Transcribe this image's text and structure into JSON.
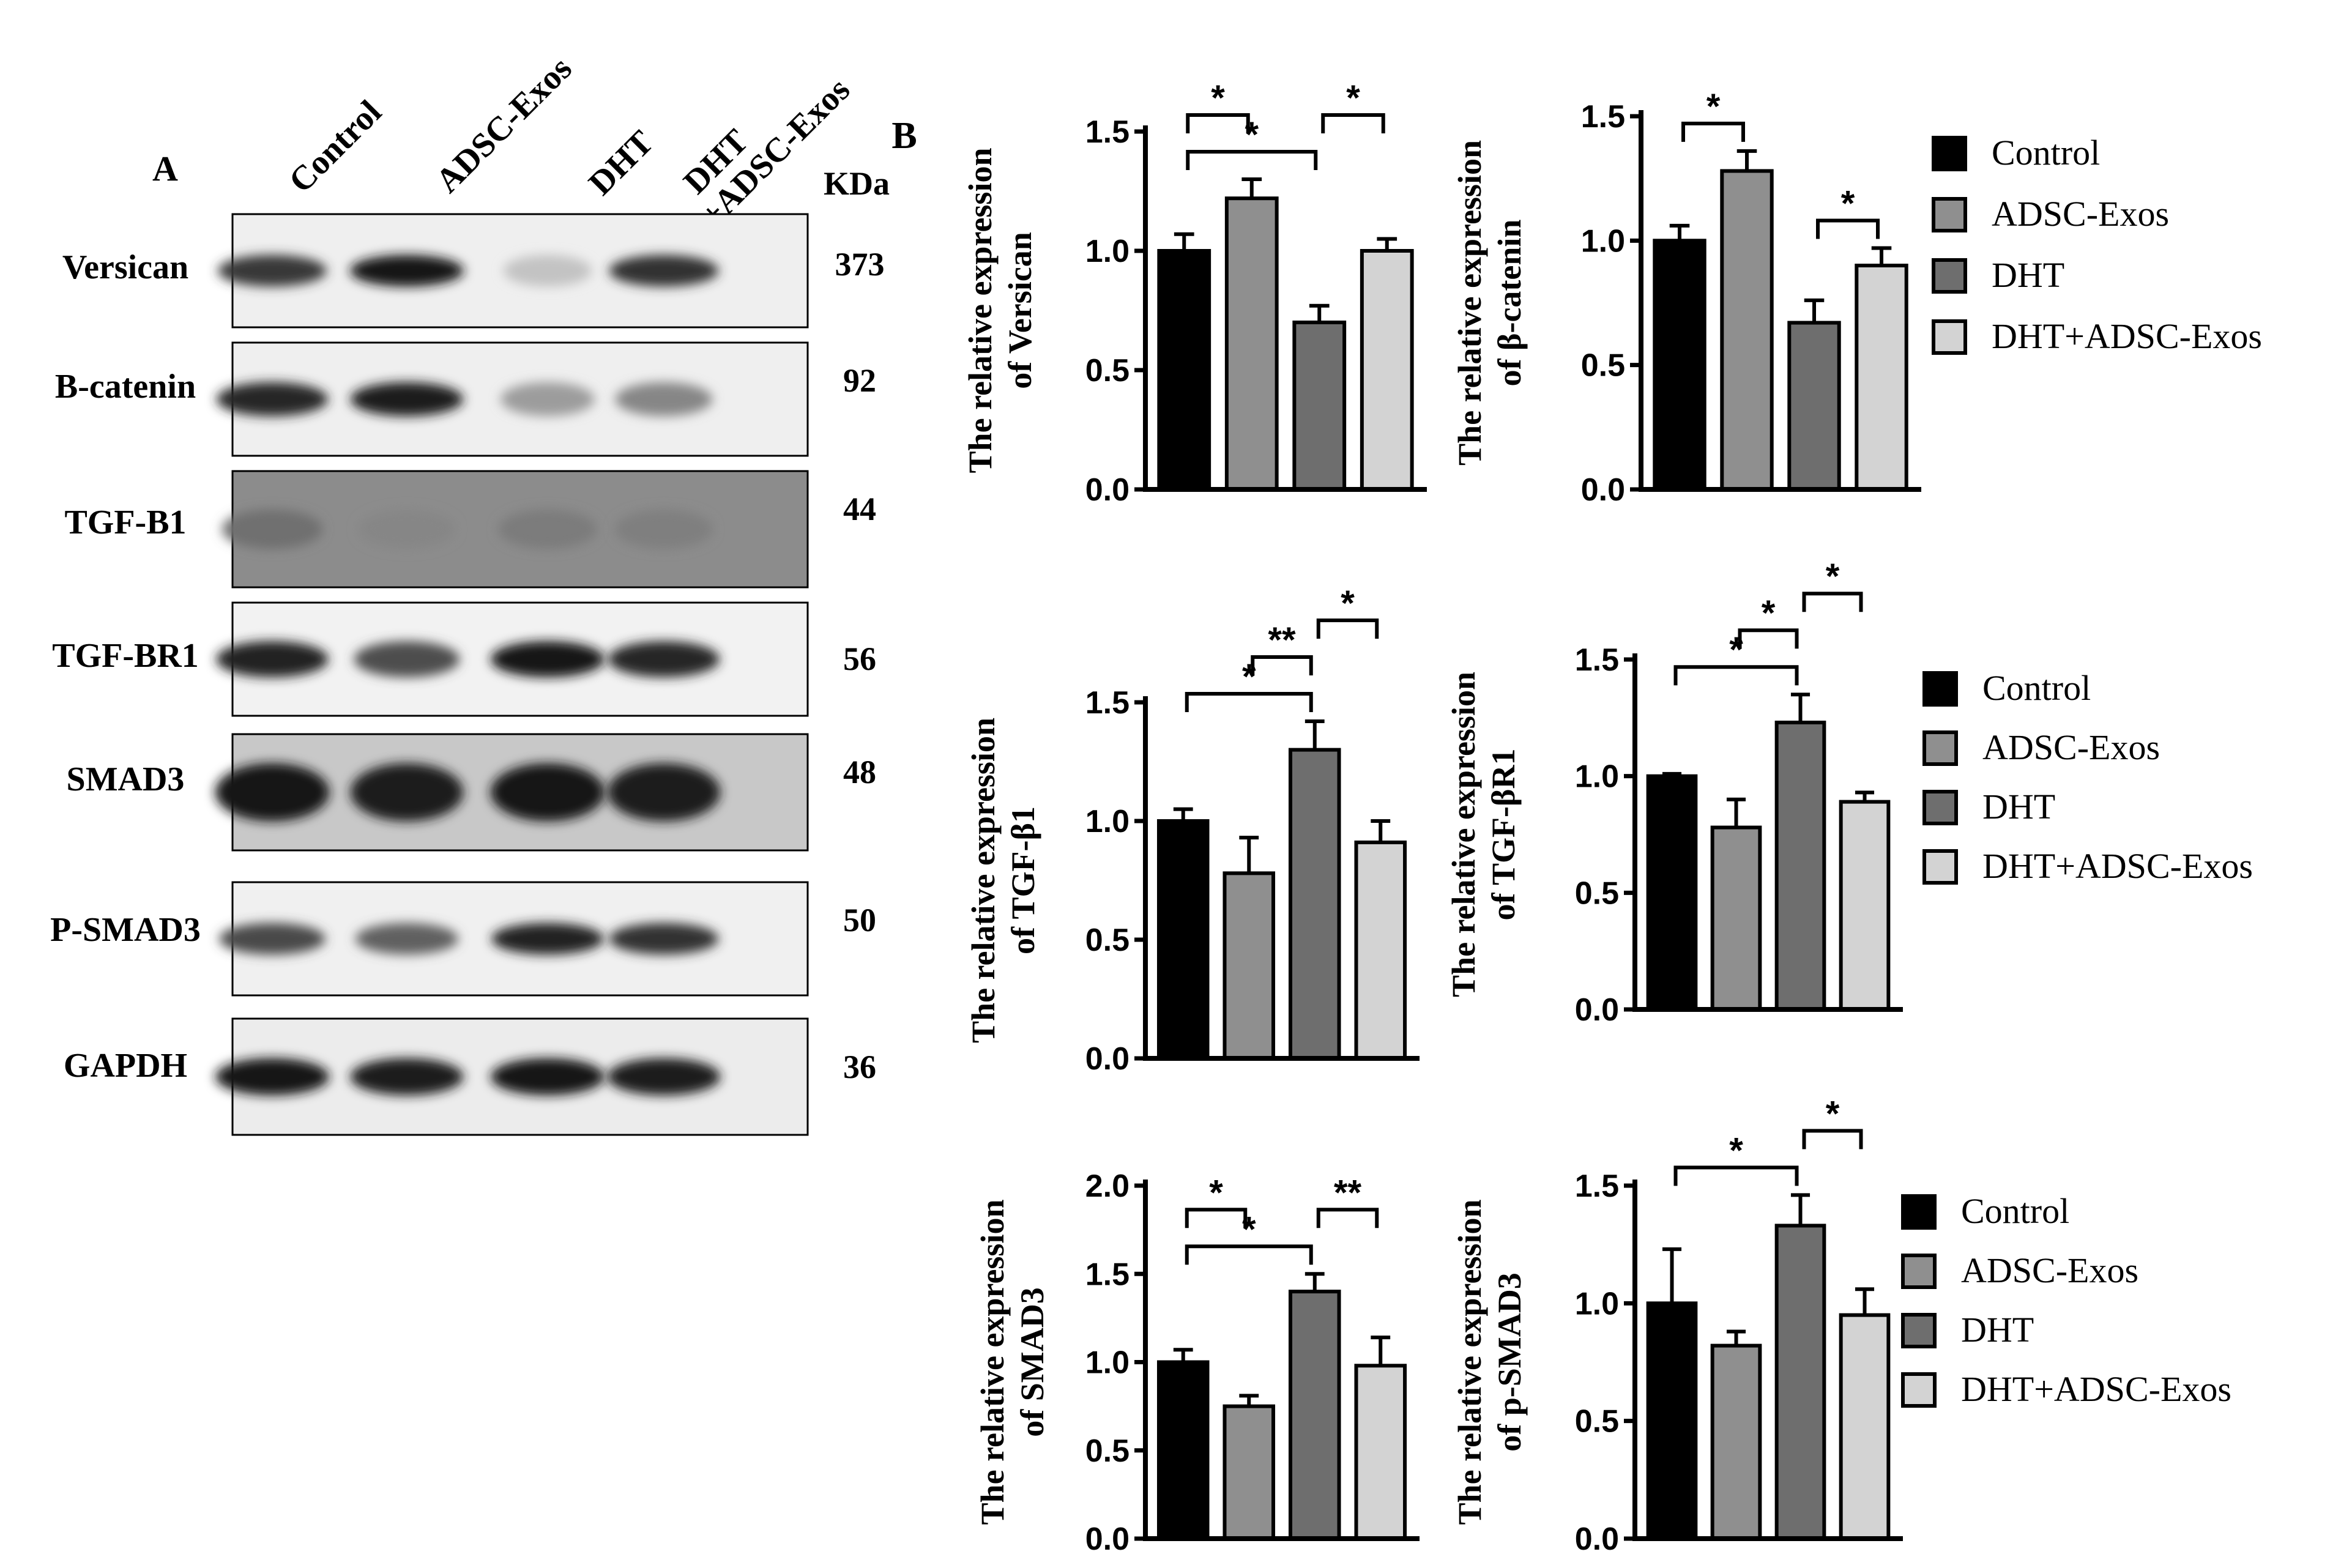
{
  "panel_a": {
    "label": "A",
    "unit_label": "KDa",
    "lane_labels": [
      {
        "text": "Control"
      },
      {
        "text": "ADSC-Exos"
      },
      {
        "text": "DHT"
      },
      {
        "text": "DHT",
        "text2": "+ADSC-Exos"
      }
    ],
    "blots": [
      {
        "name": "Versican",
        "kda": "373",
        "bg": "#efefef",
        "intensity": [
          0.8,
          0.95,
          0.18,
          0.82
        ],
        "band_h": 0.28
      },
      {
        "name": "B-catenin",
        "kda": "92",
        "bg": "#efefef",
        "intensity": [
          0.88,
          0.92,
          0.35,
          0.45
        ],
        "band_h": 0.3
      },
      {
        "name": "TGF-B1",
        "kda": "44",
        "bg": "#8c8c8c",
        "intensity": [
          0.55,
          0.45,
          0.5,
          0.48
        ],
        "band_h": 0.34
      },
      {
        "name": "TGF-BR1",
        "kda": "56",
        "bg": "#f2f2f2",
        "intensity": [
          0.9,
          0.7,
          0.95,
          0.88
        ],
        "band_h": 0.32
      },
      {
        "name": "SMAD3",
        "kda": "48",
        "bg": "#c8c8c8",
        "intensity": [
          0.96,
          0.92,
          0.96,
          0.92
        ],
        "band_h": 0.5
      },
      {
        "name": "P-SMAD3",
        "kda": "50",
        "bg": "#f0f0f0",
        "intensity": [
          0.72,
          0.62,
          0.9,
          0.82
        ],
        "band_h": 0.28
      },
      {
        "name": "GAPDH",
        "kda": "36",
        "bg": "#ececec",
        "intensity": [
          0.95,
          0.93,
          0.95,
          0.93
        ],
        "band_h": 0.32
      }
    ]
  },
  "panel_b": {
    "label": "B"
  },
  "colors": {
    "Control": "#000000",
    "ADSC-Exos": "#8f8f8f",
    "DHT": "#6e6e6e",
    "DHT+ADSC-Exos": "#d3d3d3"
  },
  "legend_items": [
    "Control",
    "ADSC-Exos",
    "DHT",
    "DHT+ADSC-Exos"
  ],
  "chart_data": [
    {
      "type": "bar",
      "categories": [
        "Control",
        "ADSC-Exos",
        "DHT",
        "DHT+ADSC-Exos"
      ],
      "values": [
        1.0,
        1.22,
        0.7,
        1.0
      ],
      "errors": [
        0.07,
        0.08,
        0.07,
        0.05
      ],
      "ylabel": "The relative expression",
      "ylabel2": "of  Versican",
      "ylim": [
        0,
        1.5
      ],
      "yticks": [
        "0.0",
        "0.5",
        "1.0",
        "1.5"
      ],
      "legend": "right",
      "significance": [
        {
          "from": 0,
          "to": 2,
          "label": "*"
        },
        {
          "from": 0,
          "to": 1,
          "label": "*"
        },
        {
          "from": 2,
          "to": 3,
          "label": "*"
        }
      ]
    },
    {
      "type": "bar",
      "categories": [
        "Control",
        "ADSC-Exos",
        "DHT",
        "DHT+ADSC-Exos"
      ],
      "values": [
        1.0,
        1.28,
        0.67,
        0.9
      ],
      "errors": [
        0.06,
        0.08,
        0.09,
        0.07
      ],
      "ylabel": "The relative expression",
      "ylabel2": "of β-catenin",
      "ylim": [
        0,
        1.5
      ],
      "yticks": [
        "0.0",
        "0.5",
        "1.0",
        "1.5"
      ],
      "legend": "right",
      "significance": [
        {
          "from": 0,
          "to": 1,
          "label": "*"
        },
        {
          "from": 2,
          "to": 3,
          "label": "*"
        }
      ]
    },
    {
      "type": "bar",
      "categories": [
        "Control",
        "ADSC-Exos",
        "DHT",
        "DHT+ADSC-Exos"
      ],
      "values": [
        1.0,
        0.78,
        1.3,
        0.91
      ],
      "errors": [
        0.05,
        0.15,
        0.12,
        0.09
      ],
      "ylabel": "The relative  expression",
      "ylabel2": "of TGF-β1",
      "ylim": [
        0,
        1.5
      ],
      "yticks": [
        "0.0",
        "0.5",
        "1.0",
        "1.5"
      ],
      "legend": "right",
      "significance": [
        {
          "from": 0,
          "to": 2,
          "label": "*"
        },
        {
          "from": 1,
          "to": 2,
          "label": "**"
        },
        {
          "from": 2,
          "to": 3,
          "label": "*"
        }
      ]
    },
    {
      "type": "bar",
      "categories": [
        "Control",
        "ADSC-Exos",
        "DHT",
        "DHT+ADSC-Exos"
      ],
      "values": [
        1.0,
        0.78,
        1.23,
        0.89
      ],
      "errors": [
        0.01,
        0.12,
        0.12,
        0.04
      ],
      "ylabel": "The relative expression",
      "ylabel2": "of TGF-βR1",
      "ylim": [
        0,
        1.5
      ],
      "yticks": [
        "0.0",
        "0.5",
        "1.0",
        "1.5"
      ],
      "legend": "right",
      "significance": [
        {
          "from": 0,
          "to": 2,
          "label": "*"
        },
        {
          "from": 1,
          "to": 2,
          "label": "*"
        },
        {
          "from": 2,
          "to": 3,
          "label": "*"
        }
      ]
    },
    {
      "type": "bar",
      "categories": [
        "Control",
        "ADSC-Exos",
        "DHT",
        "DHT+ADSC-Exos"
      ],
      "values": [
        1.0,
        0.75,
        1.4,
        0.98
      ],
      "errors": [
        0.07,
        0.06,
        0.1,
        0.16
      ],
      "ylabel": "The relative expression",
      "ylabel2": "of  SMAD3",
      "ylim": [
        0,
        2.0
      ],
      "yticks": [
        "0.0",
        "0.5",
        "1.0",
        "1.5",
        "2.0"
      ],
      "legend": "right",
      "significance": [
        {
          "from": 0,
          "to": 2,
          "label": "*"
        },
        {
          "from": 0,
          "to": 1,
          "label": "*"
        },
        {
          "from": 2,
          "to": 3,
          "label": "**"
        }
      ]
    },
    {
      "type": "bar",
      "categories": [
        "Control",
        "ADSC-Exos",
        "DHT",
        "DHT+ADSC-Exos"
      ],
      "values": [
        1.0,
        0.82,
        1.33,
        0.95
      ],
      "errors": [
        0.23,
        0.06,
        0.13,
        0.11
      ],
      "ylabel": "The relative expression",
      "ylabel2": "of  p-SMAD3",
      "ylim": [
        0,
        1.5
      ],
      "yticks": [
        "0.0",
        "0.5",
        "1.0",
        "1.5"
      ],
      "legend": "right",
      "significance": [
        {
          "from": 0,
          "to": 2,
          "label": "*"
        },
        {
          "from": 2,
          "to": 3,
          "label": "*"
        }
      ]
    }
  ]
}
